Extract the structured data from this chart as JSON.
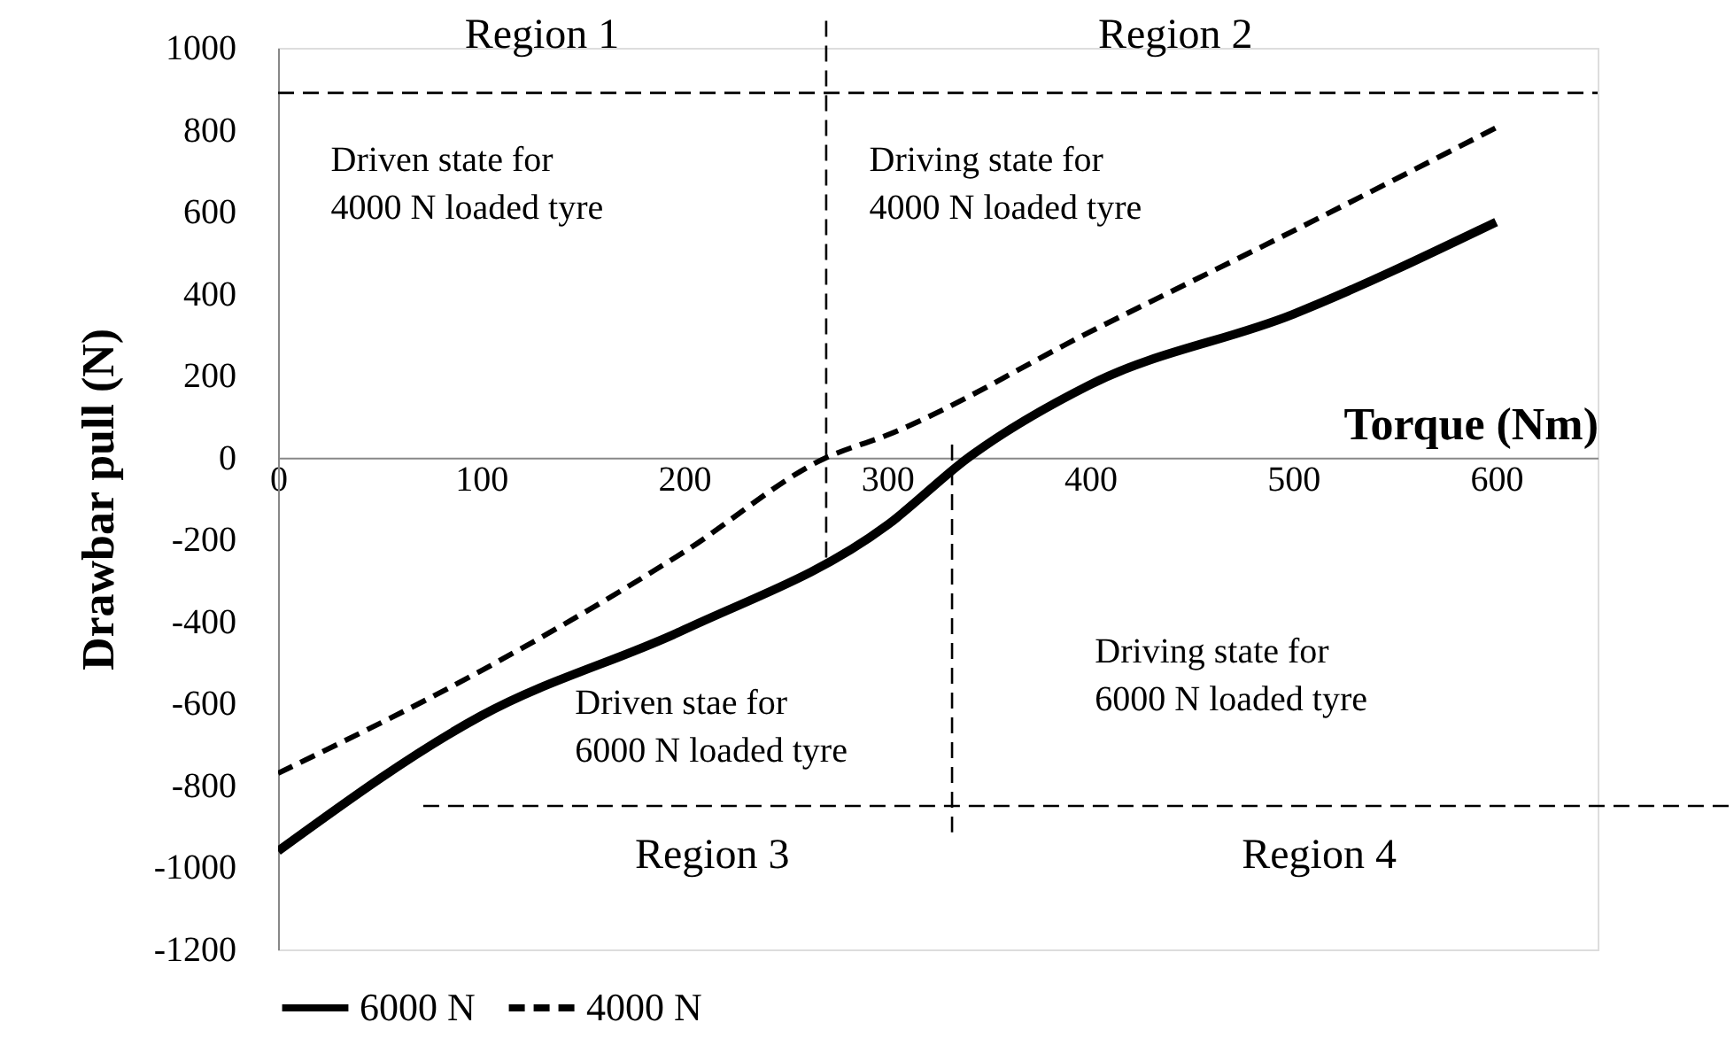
{
  "chart_data": {
    "type": "line",
    "xlabel": "Torque (Nm)",
    "ylabel": "Drawbar pull (N)",
    "x": [
      0,
      100,
      200,
      300,
      340,
      400,
      500,
      600
    ],
    "series": [
      {
        "name": "6000 N",
        "color": "#000000",
        "line_style": "solid",
        "values": [
          -960,
          -630,
          -420,
          -165,
          0,
          178,
          350,
          575
        ]
      },
      {
        "name": "4000 N",
        "color": "#000000",
        "line_style": "dashed",
        "x": [
          0,
          100,
          200,
          270,
          300,
          400,
          500,
          600
        ],
        "values": [
          -770,
          -520,
          -230,
          0,
          55,
          307,
          553,
          805
        ]
      }
    ],
    "xlim": [
      0,
      650
    ],
    "xticks": [
      0,
      100,
      200,
      300,
      400,
      500,
      600
    ],
    "ylim": [
      -1200,
      1000
    ],
    "yticks": [
      -1200,
      -1000,
      -800,
      -600,
      -400,
      -200,
      0,
      200,
      400,
      600,
      800,
      1000
    ],
    "grid": false,
    "legend": "bottom",
    "marker": "none",
    "ref_lines": [
      {
        "axis": "x",
        "value": 270,
        "color": "#000000",
        "line_style": "dashed"
      },
      {
        "axis": "x",
        "value": 332,
        "color": "#000000",
        "line_style": "dashed"
      },
      {
        "axis": "y",
        "value": 890,
        "color": "#000000",
        "line_style": "dashed"
      },
      {
        "axis": "y",
        "value": -850,
        "color": "#000000",
        "line_style": "dashed"
      }
    ],
    "annotations": [
      "Region 1",
      "Region 2",
      "Driven state for\n4000 N loaded tyre",
      "Driving state for\n4000 N loaded tyre",
      "Driven stae for\n6000 N loaded tyre",
      "Driving state for\n6000 N loaded tyre",
      "Region 3",
      "Region 4"
    ]
  }
}
